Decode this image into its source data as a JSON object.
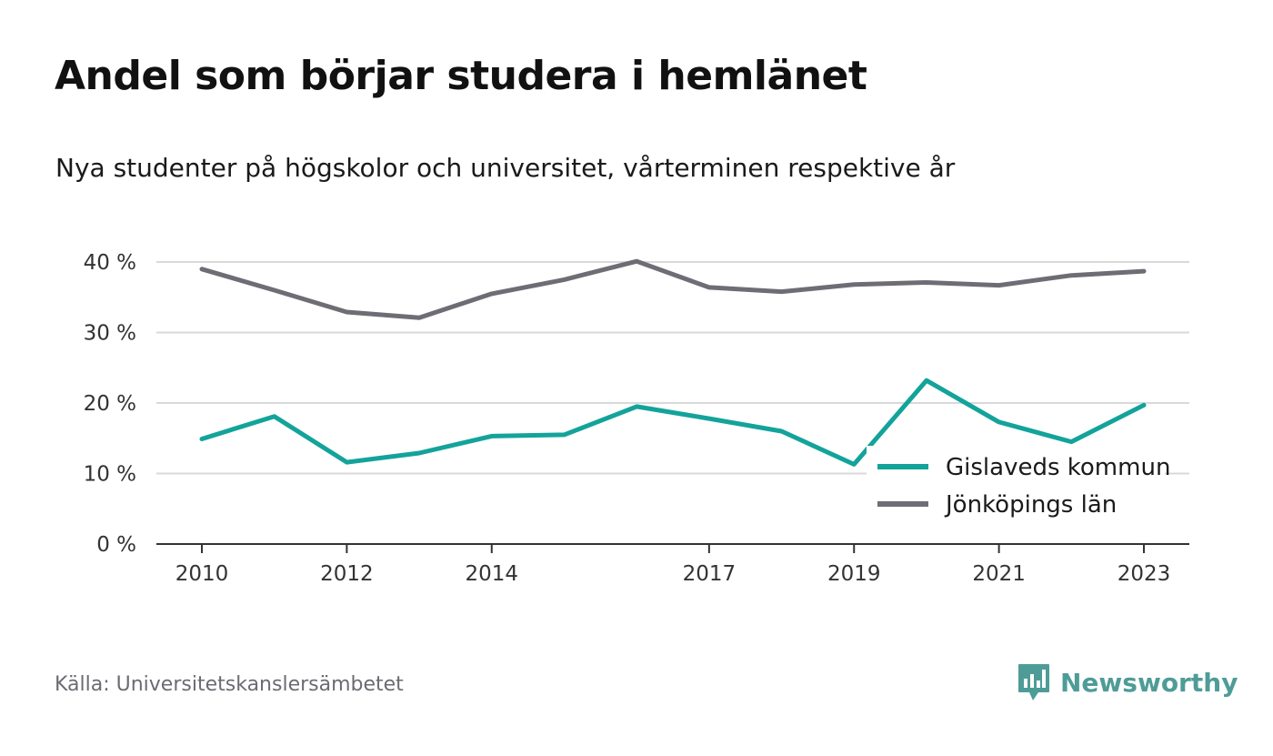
{
  "title": "Andel som börjar studera i hemlänet",
  "subtitle": "Nya studenter på högskolor och universitet, vårterminen respektive år",
  "source": "Källa: Universitetskanslersämbetet",
  "brand": {
    "name": "Newsworthy",
    "color": "#4e9c97",
    "icon": "newsworthy-logo-icon"
  },
  "chart_data": {
    "type": "line",
    "x": [
      2010,
      2011,
      2012,
      2013,
      2014,
      2015,
      2016,
      2017,
      2018,
      2019,
      2020,
      2021,
      2022,
      2023
    ],
    "x_tick_labels": [
      "2010",
      "2012",
      "2014",
      "2017",
      "2019",
      "2021",
      "2023"
    ],
    "y_ticks": [
      0,
      10,
      20,
      30,
      40
    ],
    "y_tick_labels": [
      "0 %",
      "10 %",
      "20 %",
      "30 %",
      "40 %"
    ],
    "ylim": [
      0,
      40
    ],
    "grid": true,
    "legend_position": "bottom-right",
    "series": [
      {
        "name": "Gislaveds kommun",
        "color": "#13a39a",
        "values": [
          14.9,
          18.1,
          11.6,
          12.9,
          15.3,
          15.5,
          19.5,
          17.8,
          16.0,
          11.3,
          23.2,
          17.3,
          14.5,
          19.7
        ]
      },
      {
        "name": "Jönköpings län",
        "color": "#6e6d75",
        "values": [
          39.0,
          36.0,
          32.9,
          32.1,
          35.5,
          37.5,
          40.1,
          36.4,
          35.8,
          36.8,
          37.1,
          36.7,
          38.1,
          38.7
        ]
      }
    ]
  }
}
